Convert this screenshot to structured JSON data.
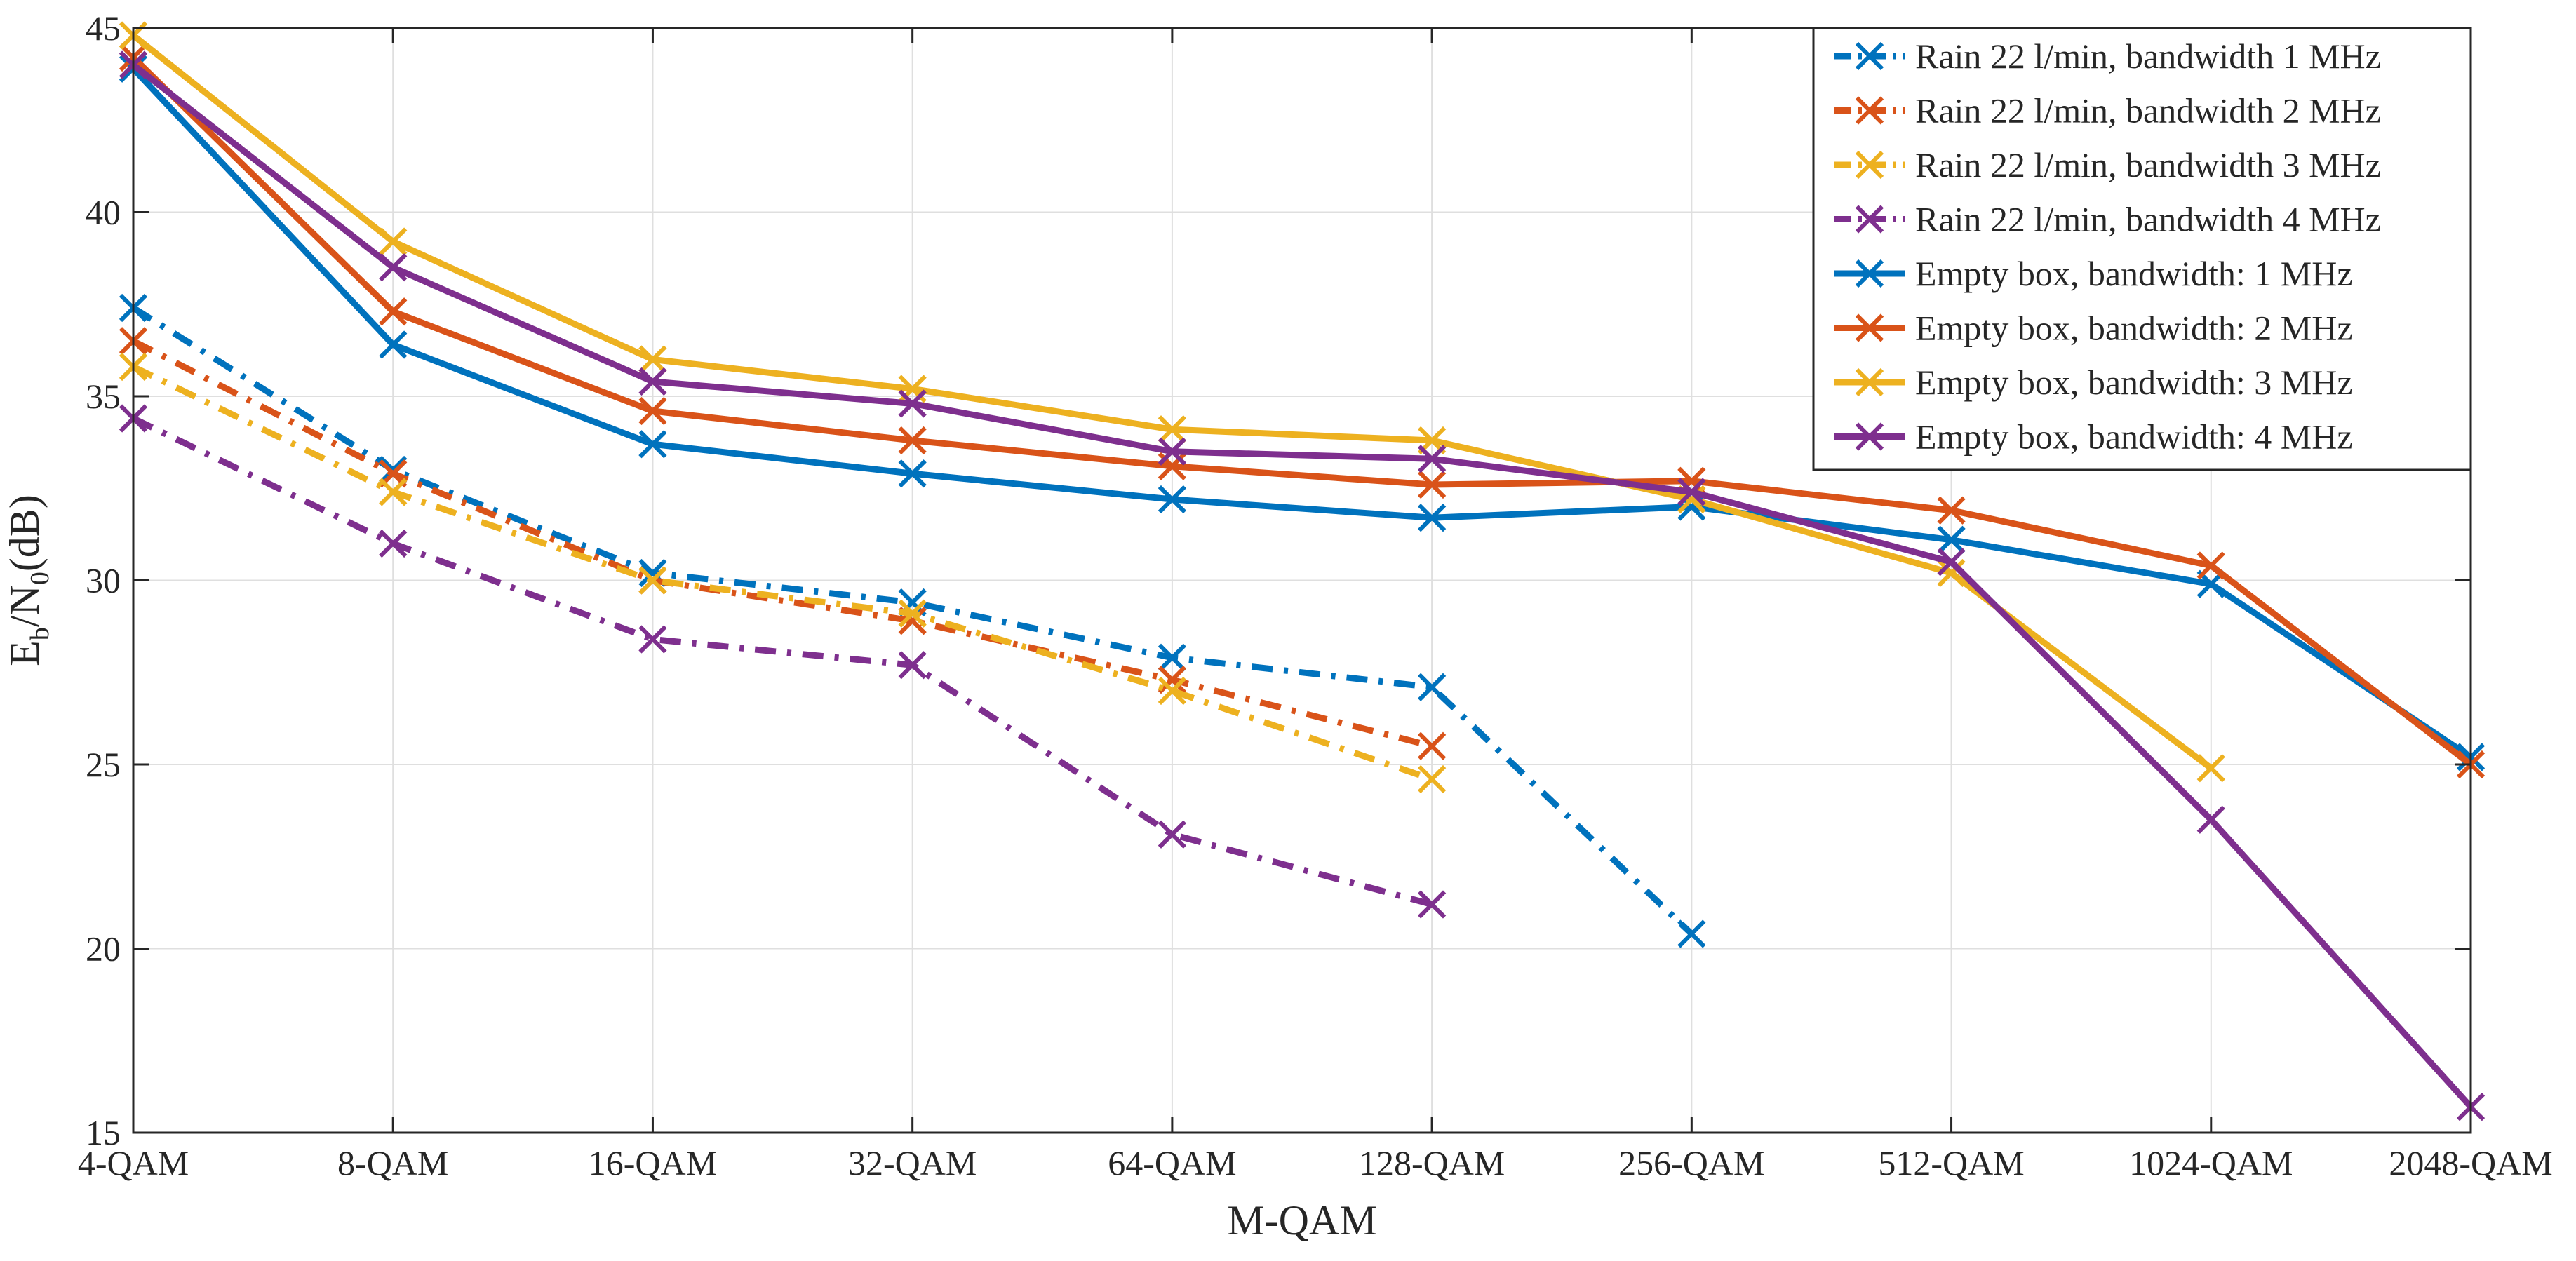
{
  "chart_data": {
    "type": "line",
    "title": "",
    "xlabel": "M-QAM",
    "ylabel": {
      "main": "E",
      "sub1": "b",
      "slash": "/N",
      "sub2": "0",
      "unit": "(dB)"
    },
    "categories": [
      "4-QAM",
      "8-QAM",
      "16-QAM",
      "32-QAM",
      "64-QAM",
      "128-QAM",
      "256-QAM",
      "512-QAM",
      "1024-QAM",
      "2048-QAM"
    ],
    "ylim": [
      15,
      45
    ],
    "yticks": [
      15,
      20,
      25,
      30,
      35,
      40,
      45
    ],
    "grid": true,
    "legend_position": "top-right",
    "marker": "x",
    "series": [
      {
        "name": "Rain 22 l/min, bandwidth 1 MHz",
        "style": "dashdot",
        "color": "#0072BD",
        "values": [
          37.4,
          33.0,
          30.2,
          29.4,
          27.9,
          27.1,
          20.4,
          null,
          null,
          null
        ]
      },
      {
        "name": "Rain 22 l/min, bandwidth 2 MHz",
        "style": "dashdot",
        "color": "#D95319",
        "values": [
          36.5,
          32.9,
          30.0,
          28.9,
          27.3,
          25.5,
          null,
          null,
          null,
          null
        ]
      },
      {
        "name": "Rain 22 l/min, bandwidth 3 MHz",
        "style": "dashdot",
        "color": "#EDB120",
        "values": [
          35.8,
          32.4,
          30.0,
          29.1,
          27.0,
          24.6,
          null,
          null,
          null,
          null
        ]
      },
      {
        "name": "Rain 22 l/min, bandwidth 4 MHz",
        "style": "dashdot",
        "color": "#7E2F8E",
        "values": [
          34.4,
          31.0,
          28.4,
          27.7,
          23.1,
          21.2,
          null,
          null,
          null,
          null
        ]
      },
      {
        "name": "Empty box, bandwidth: 1 MHz",
        "style": "solid",
        "color": "#0072BD",
        "values": [
          43.9,
          36.4,
          33.7,
          32.9,
          32.2,
          31.7,
          32.0,
          31.1,
          29.9,
          25.2
        ]
      },
      {
        "name": "Empty box, bandwidth: 2 MHz",
        "style": "solid",
        "color": "#D95319",
        "values": [
          44.2,
          37.3,
          34.6,
          33.8,
          33.1,
          32.6,
          32.7,
          31.9,
          30.4,
          25.0
        ]
      },
      {
        "name": "Empty box, bandwidth: 3 MHz",
        "style": "solid",
        "color": "#EDB120",
        "values": [
          44.8,
          39.2,
          36.0,
          35.2,
          34.1,
          33.8,
          32.2,
          30.2,
          24.9,
          null
        ]
      },
      {
        "name": "Empty box, bandwidth: 4 MHz",
        "style": "solid",
        "color": "#7E2F8E",
        "values": [
          44.0,
          38.5,
          35.4,
          34.8,
          33.5,
          33.3,
          32.4,
          30.5,
          23.5,
          15.7
        ]
      }
    ]
  }
}
